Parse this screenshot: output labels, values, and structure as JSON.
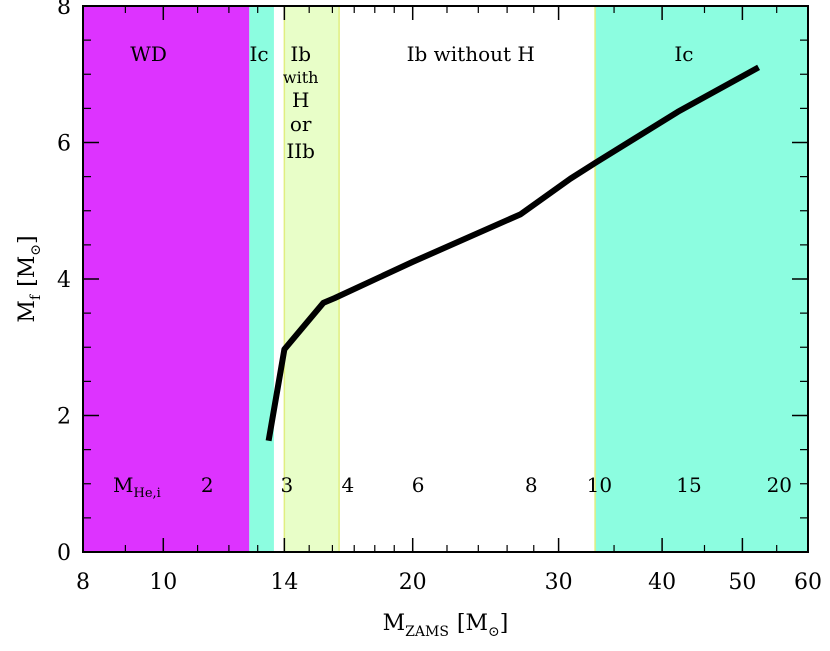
{
  "chart_data": {
    "type": "line",
    "x_scale": "log",
    "xlim": [
      8,
      60
    ],
    "ylim": [
      0,
      8
    ],
    "x_ticks": [
      {
        "value": 8,
        "label": "8"
      },
      {
        "value": 10,
        "label": "10"
      },
      {
        "value": 14,
        "label": "14"
      },
      {
        "value": 20,
        "label": "20"
      },
      {
        "value": 30,
        "label": "30"
      },
      {
        "value": 40,
        "label": "40"
      },
      {
        "value": 50,
        "label": "50"
      },
      {
        "value": 60,
        "label": "60"
      }
    ],
    "y_ticks": [
      {
        "value": 0,
        "label": "0"
      },
      {
        "value": 2,
        "label": "2"
      },
      {
        "value": 4,
        "label": "4"
      },
      {
        "value": 6,
        "label": "6"
      },
      {
        "value": 8,
        "label": "8"
      }
    ],
    "xlabel": {
      "main": "M",
      "sub": "ZAMS",
      "unit": "[M",
      "sun": "⊙",
      "close": "]"
    },
    "ylabel": {
      "main": "M",
      "sub": "f",
      "unit": "[M",
      "sun": "⊙",
      "close": "]"
    },
    "series": [
      {
        "x": [
          13.4,
          14.0,
          15.6,
          16.1,
          20.0,
          27.0,
          31.0,
          33.2,
          41.8,
          52.3
        ],
        "y": [
          1.63,
          2.97,
          3.65,
          3.72,
          4.25,
          4.95,
          5.47,
          5.7,
          6.45,
          7.1
        ],
        "color": "#000000"
      }
    ],
    "regions": [
      {
        "x0": 8.0,
        "x1": 12.7,
        "color": "#dd33ff",
        "label": "WD",
        "label_x": 9.6
      },
      {
        "x0": 12.7,
        "x1": 13.6,
        "color": "#8cfde0",
        "label": "Ic",
        "label_x": 13.05
      },
      {
        "x0": 14.0,
        "x1": 16.3,
        "color": "#e8fec8",
        "label": "Ib",
        "label_x": 14.65
      },
      {
        "x0": 33.2,
        "x1": 60.0,
        "color": "#8cfde0",
        "label": "Ic",
        "label_x": 42.5
      }
    ],
    "ib_with_h_lines": [
      "with",
      "H",
      "or",
      "IIb"
    ],
    "ib_without_h_label": "Ib without H",
    "mhe_label": {
      "main": "M",
      "sub": "He,i"
    },
    "mhe_values": [
      {
        "x": 11.3,
        "label": "2"
      },
      {
        "x": 14.1,
        "label": "3"
      },
      {
        "x": 16.7,
        "label": "4"
      },
      {
        "x": 20.3,
        "label": "6"
      },
      {
        "x": 27.8,
        "label": "8"
      },
      {
        "x": 33.6,
        "label": "10"
      },
      {
        "x": 43.1,
        "label": "15"
      },
      {
        "x": 55.4,
        "label": "20"
      }
    ]
  }
}
